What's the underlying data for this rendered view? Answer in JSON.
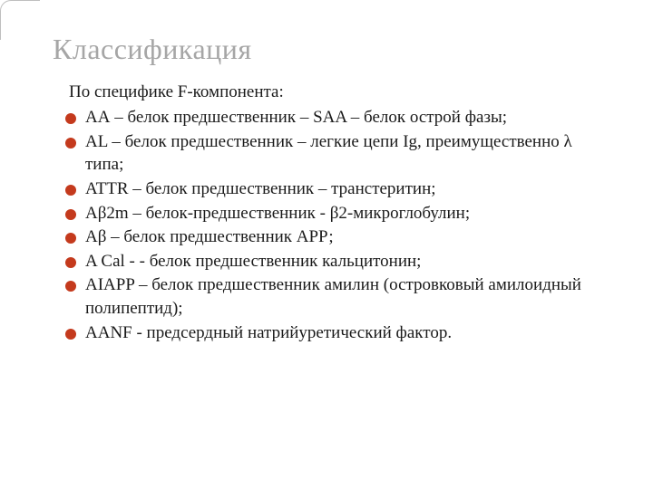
{
  "colors": {
    "title": "#a6a6a6",
    "text": "#1a1a1a",
    "bullet": "#c43a1d",
    "corner": "#bfbfbf",
    "background": "#ffffff"
  },
  "typography": {
    "title_fontsize": 32,
    "body_fontsize": 19,
    "font_family": "Georgia, Times New Roman, serif"
  },
  "slide": {
    "title": "Классификация",
    "intro": "По специфике F-компонента:",
    "items": [
      "АА – белок предшественник – SAA – белок острой фазы;",
      "AL – белок предшественник – легкие цепи Ig, преимущественно λ  типа;",
      "ATTR – белок предшественник – транстеритин;",
      "Aβ2m – белок-предшественник - β2-микроглобулин;",
      "Aβ – белок предшественник АРР;",
      "A   Cal - - белок предшественник кальцитонин;",
      "AIAPP – белок предшественник  амилин (островковый амилоидный полипептид);",
      "AANF - предсердный натрийуретический фактор."
    ]
  }
}
